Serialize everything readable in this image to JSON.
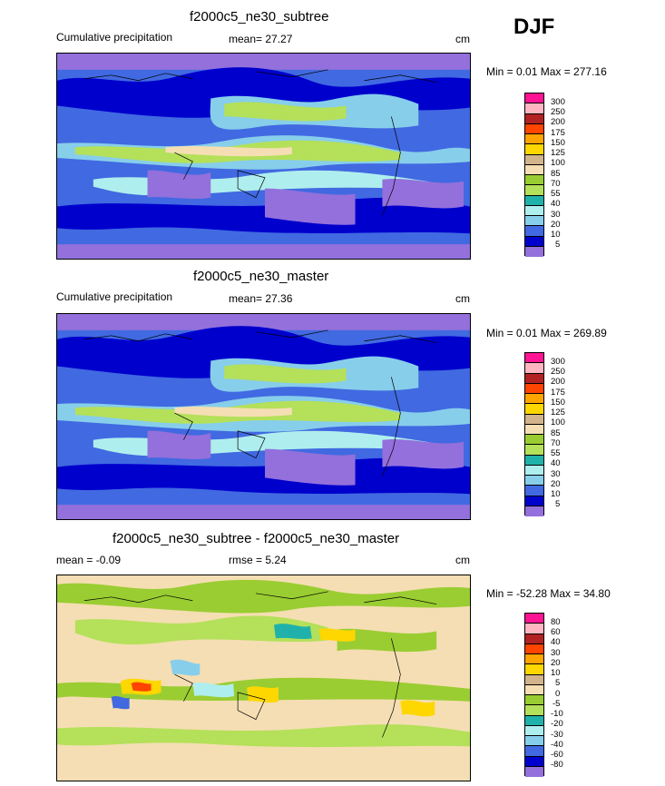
{
  "season": "DJF",
  "panels": [
    {
      "title": "f2000c5_ne30_subtree",
      "left_label": "Cumulative precipitation",
      "mean_text": "mean=  27.27",
      "units": "cm",
      "minmax": "Min =   0.01 Max = 277.16",
      "levels": [
        "300",
        "250",
        "200",
        "175",
        "150",
        "125",
        "100",
        "85",
        "70",
        "55",
        "40",
        "30",
        "20",
        "10",
        "5"
      ],
      "colors": [
        "#ff1493",
        "#ffb6c1",
        "#b22222",
        "#ff4500",
        "#ffa500",
        "#ffd700",
        "#d2b48c",
        "#f5deb3",
        "#9acd32",
        "#b4e05a",
        "#20b2aa",
        "#afeeee",
        "#87ceeb",
        "#4169e1",
        "#0000cd",
        "#9370db"
      ]
    },
    {
      "title": "f2000c5_ne30_master",
      "left_label": "Cumulative precipitation",
      "mean_text": "mean=  27.36",
      "units": "cm",
      "minmax": "Min =   0.01 Max = 269.89",
      "levels": [
        "300",
        "250",
        "200",
        "175",
        "150",
        "125",
        "100",
        "85",
        "70",
        "55",
        "40",
        "30",
        "20",
        "10",
        "5"
      ],
      "colors": [
        "#ff1493",
        "#ffb6c1",
        "#b22222",
        "#ff4500",
        "#ffa500",
        "#ffd700",
        "#d2b48c",
        "#f5deb3",
        "#9acd32",
        "#b4e05a",
        "#20b2aa",
        "#afeeee",
        "#87ceeb",
        "#4169e1",
        "#0000cd",
        "#9370db"
      ]
    },
    {
      "title": "f2000c5_ne30_subtree - f2000c5_ne30_master",
      "left_label": "mean =  -0.09",
      "mean_text": "rmse =   5.24",
      "units": "cm",
      "minmax": "Min = -52.28 Max =  34.80",
      "levels": [
        "80",
        "60",
        "40",
        "30",
        "20",
        "10",
        "5",
        "0",
        "-5",
        "-10",
        "-20",
        "-30",
        "-40",
        "-60",
        "-80"
      ],
      "colors": [
        "#ff1493",
        "#ffb6c1",
        "#b22222",
        "#ff4500",
        "#ffa500",
        "#ffd700",
        "#d2b48c",
        "#f5deb3",
        "#9acd32",
        "#b4e05a",
        "#20b2aa",
        "#afeeee",
        "#87ceeb",
        "#4169e1",
        "#0000cd",
        "#9370db"
      ]
    }
  ],
  "chart_data": [
    {
      "type": "heatmap",
      "title": "f2000c5_ne30_subtree",
      "variable": "Cumulative precipitation",
      "season": "DJF",
      "units": "cm",
      "mean": 27.27,
      "min": 0.01,
      "max": 277.16,
      "contour_levels": [
        5,
        10,
        20,
        30,
        40,
        55,
        70,
        85,
        100,
        125,
        150,
        175,
        200,
        250,
        300
      ]
    },
    {
      "type": "heatmap",
      "title": "f2000c5_ne30_master",
      "variable": "Cumulative precipitation",
      "season": "DJF",
      "units": "cm",
      "mean": 27.36,
      "min": 0.01,
      "max": 269.89,
      "contour_levels": [
        5,
        10,
        20,
        30,
        40,
        55,
        70,
        85,
        100,
        125,
        150,
        175,
        200,
        250,
        300
      ]
    },
    {
      "type": "heatmap",
      "title": "f2000c5_ne30_subtree - f2000c5_ne30_master",
      "units": "cm",
      "mean": -0.09,
      "rmse": 5.24,
      "min": -52.28,
      "max": 34.8,
      "contour_levels": [
        -80,
        -60,
        -40,
        -30,
        -20,
        -10,
        -5,
        0,
        5,
        10,
        20,
        30,
        40,
        60,
        80
      ]
    }
  ]
}
